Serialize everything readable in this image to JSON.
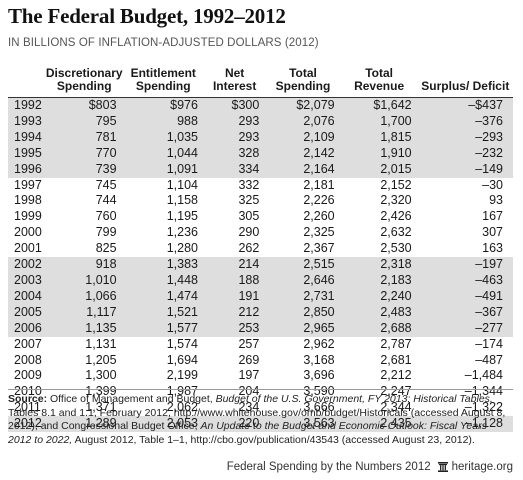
{
  "title": "The Federal Budget, 1992–2012",
  "subtitle": "IN BILLIONS OF INFLATION-ADJUSTED DOLLARS (2012)",
  "columns": [
    "",
    "Discretionary Spending",
    "Entitlement Spending",
    "Net Interest",
    "Total Spending",
    "Total Revenue",
    "Surplus/ Deficit"
  ],
  "rows": [
    [
      "1992",
      "$803",
      "$976",
      "$300",
      "$2,079",
      "$1,642",
      "–$437"
    ],
    [
      "1993",
      "795",
      "988",
      "293",
      "2,076",
      "1,700",
      "–376"
    ],
    [
      "1994",
      "781",
      "1,035",
      "293",
      "2,109",
      "1,815",
      "–293"
    ],
    [
      "1995",
      "770",
      "1,044",
      "328",
      "2,142",
      "1,910",
      "–232"
    ],
    [
      "1996",
      "739",
      "1,091",
      "334",
      "2,164",
      "2,015",
      "–149"
    ],
    [
      "1997",
      "745",
      "1,104",
      "332",
      "2,181",
      "2,152",
      "–30"
    ],
    [
      "1998",
      "744",
      "1,158",
      "325",
      "2,226",
      "2,320",
      "93"
    ],
    [
      "1999",
      "760",
      "1,195",
      "305",
      "2,260",
      "2,426",
      "167"
    ],
    [
      "2000",
      "799",
      "1,236",
      "290",
      "2,325",
      "2,632",
      "307"
    ],
    [
      "2001",
      "825",
      "1,280",
      "262",
      "2,367",
      "2,530",
      "163"
    ],
    [
      "2002",
      "918",
      "1,383",
      "214",
      "2,515",
      "2,318",
      "–197"
    ],
    [
      "2003",
      "1,010",
      "1,448",
      "188",
      "2,646",
      "2,183",
      "–463"
    ],
    [
      "2004",
      "1,066",
      "1,474",
      "191",
      "2,731",
      "2,240",
      "–491"
    ],
    [
      "2005",
      "1,117",
      "1,521",
      "212",
      "2,850",
      "2,483",
      "–367"
    ],
    [
      "2006",
      "1,135",
      "1,577",
      "253",
      "2,965",
      "2,688",
      "–277"
    ],
    [
      "2007",
      "1,131",
      "1,574",
      "257",
      "2,962",
      "2,787",
      "–174"
    ],
    [
      "2008",
      "1,205",
      "1,694",
      "269",
      "3,168",
      "2,681",
      "–487"
    ],
    [
      "2009",
      "1,300",
      "2,199",
      "197",
      "3,696",
      "2,212",
      "–1,484"
    ],
    [
      "2010",
      "1,399",
      "1,987",
      "204",
      "3,590",
      "2,247",
      "–1,344"
    ],
    [
      "2011",
      "1,371",
      "2,062",
      "234",
      "3,666",
      "2,344",
      "–1,322"
    ],
    [
      "2012",
      "1,289",
      "2,053",
      "220",
      "3,563",
      "2,435",
      "–1,128"
    ]
  ],
  "source": {
    "label": "Source:",
    "part1": " Office of Management and Budget, ",
    "italic1": "Budget of the U.S. Government, FY 2013: Historical Tables,",
    "part2": " Tables 8.1 and 1.1, February 2012, http://www.whitehouse.gov/omb/budget/Historicals (accessed August 8, 2012), and Congressional Budget Office, ",
    "italic2": "An Update to the Budget and Economic Outlook: Fiscal Years 2012 to 2022,",
    "part3": " August 2012, Table 1–1, http://cbo.gov/publication/43543 (accessed August 23, 2012)."
  },
  "footer": {
    "series": "Federal Spending by the Numbers 2012",
    "brand": "heritage.org"
  },
  "colors": {
    "shade": "#dedede",
    "rule": "#333333"
  },
  "icons": {
    "logo": "heritage-bell-icon"
  }
}
